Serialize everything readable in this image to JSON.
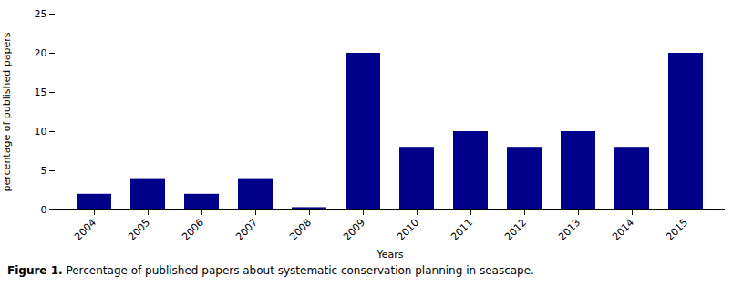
{
  "chart_data": {
    "type": "bar",
    "categories": [
      "2004",
      "2005",
      "2006",
      "2007",
      "2008",
      "2009",
      "2010",
      "2011",
      "2012",
      "2013",
      "2014",
      "2015"
    ],
    "values": [
      2,
      4,
      2,
      4,
      0.3,
      20,
      8,
      10,
      8,
      10,
      8,
      20
    ],
    "color": "#00008B",
    "xlabel": "Years",
    "ylabel": "percentage of published papers",
    "ylim": [
      0,
      25
    ],
    "yticks": [
      0,
      5,
      10,
      15,
      20,
      25
    ],
    "grid": false,
    "caption": {
      "label": "Figure 1.",
      "text": "Percentage of published papers about systematic conservation planning in seascape."
    }
  }
}
